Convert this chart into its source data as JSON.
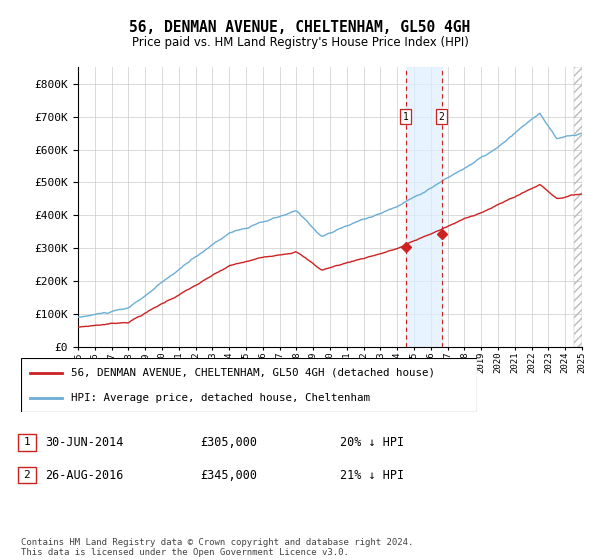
{
  "title": "56, DENMAN AVENUE, CHELTENHAM, GL50 4GH",
  "subtitle": "Price paid vs. HM Land Registry's House Price Index (HPI)",
  "legend_line1": "56, DENMAN AVENUE, CHELTENHAM, GL50 4GH (detached house)",
  "legend_line2": "HPI: Average price, detached house, Cheltenham",
  "annotation1_date": "30-JUN-2014",
  "annotation1_price": "£305,000",
  "annotation1_hpi": "20% ↓ HPI",
  "annotation2_date": "26-AUG-2016",
  "annotation2_price": "£345,000",
  "annotation2_hpi": "21% ↓ HPI",
  "footer": "Contains HM Land Registry data © Crown copyright and database right 2024.\nThis data is licensed under the Open Government Licence v3.0.",
  "ylim": [
    0,
    850000
  ],
  "yticks": [
    0,
    100000,
    200000,
    300000,
    400000,
    500000,
    600000,
    700000,
    800000
  ],
  "xlim_start": 1995,
  "xlim_end": 2025,
  "hpi_color": "#6baed6",
  "price_color": "#cc2222",
  "shade_color": "#ddeeff",
  "grid_color": "#cccccc",
  "hatch_color": "#aaaaaa",
  "t1": 2014.496,
  "t2": 2016.646,
  "price1": 305000,
  "price2": 345000,
  "background_color": "#ffffff"
}
